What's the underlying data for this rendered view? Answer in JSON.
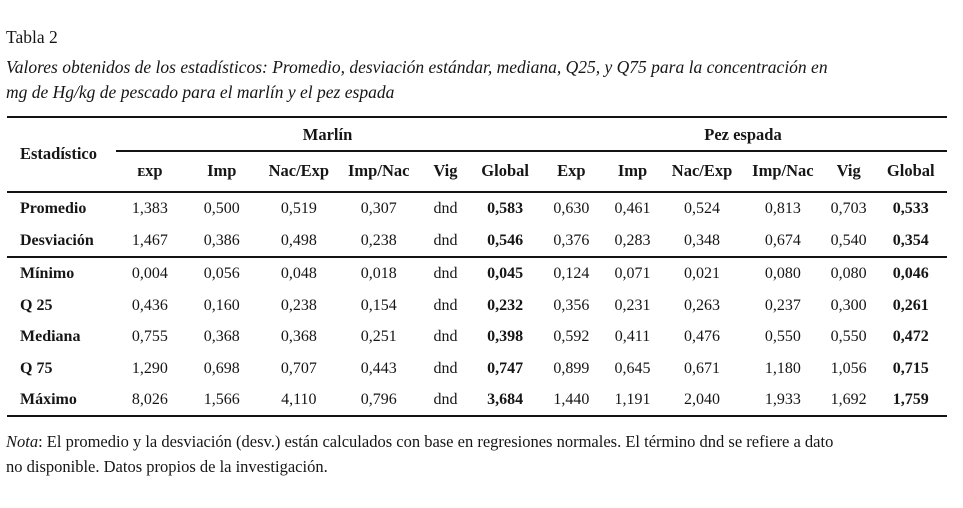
{
  "page": {
    "title": "Tabla 2",
    "caption_lines": [
      "Valores obtenidos de los estadísticos: Promedio, desviación estándar, mediana, Q25, y Q75 para la concentración en",
      "mg de Hg/kg de pescado para el marlín y el pez espada"
    ]
  },
  "table": {
    "stat_header": "Estadístico",
    "groups": [
      {
        "label": "Marlín"
      },
      {
        "label": "Pez espada"
      }
    ],
    "columns": [
      "ᴇxp",
      "Imp",
      "Nac/Exp",
      "Imp/Nac",
      "Vig",
      "Global",
      "Exp",
      "Imp",
      "Nac/Exp",
      "Imp/Nac",
      "Vig",
      "Global"
    ],
    "rows": [
      {
        "label": "Promedio",
        "values": [
          "1,383",
          "0,500",
          "0,519",
          "0,307",
          "dnd",
          "0,583",
          "0,630",
          "0,461",
          "0,524",
          "0,813",
          "0,703",
          "0,533"
        ]
      },
      {
        "label": "Desviación",
        "values": [
          "1,467",
          "0,386",
          "0,498",
          "0,238",
          "dnd",
          "0,546",
          "0,376",
          "0,283",
          "0,348",
          "0,674",
          "0,540",
          "0,354"
        ]
      },
      {
        "label": "Mínimo",
        "values": [
          "0,004",
          "0,056",
          "0,048",
          "0,018",
          "dnd",
          "0,045",
          "0,124",
          "0,071",
          "0,021",
          "0,080",
          "0,080",
          "0,046"
        ]
      },
      {
        "label": "Q 25",
        "values": [
          "0,436",
          "0,160",
          "0,238",
          "0,154",
          "dnd",
          "0,232",
          "0,356",
          "0,231",
          "0,263",
          "0,237",
          "0,300",
          "0,261"
        ]
      },
      {
        "label": "Mediana",
        "values": [
          "0,755",
          "0,368",
          "0,368",
          "0,251",
          "dnd",
          "0,398",
          "0,592",
          "0,411",
          "0,476",
          "0,550",
          "0,550",
          "0,472"
        ]
      },
      {
        "label": "Q 75",
        "values": [
          "1,290",
          "0,698",
          "0,707",
          "0,443",
          "dnd",
          "0,747",
          "0,899",
          "0,645",
          "0,671",
          "1,180",
          "1,056",
          "0,715"
        ]
      },
      {
        "label": "Máximo",
        "values": [
          "8,026",
          "1,566",
          "4,110",
          "0,796",
          "dnd",
          "3,684",
          "1,440",
          "1,191",
          "2,040",
          "1,933",
          "1,692",
          "1,759"
        ]
      }
    ],
    "col_widths_pct": [
      11.6,
      7.2,
      8.1,
      8.3,
      8.7,
      5.5,
      7.2,
      6.9,
      6.1,
      8.7,
      8.5,
      5.5,
      7.7
    ]
  },
  "note": {
    "label": "Nota",
    "line1_text": ": El promedio y la desviación (desv.) están calculados con base en regresiones normales. El término dnd se refiere a dato",
    "line2_text": "no disponible. Datos propios de la investigación."
  }
}
